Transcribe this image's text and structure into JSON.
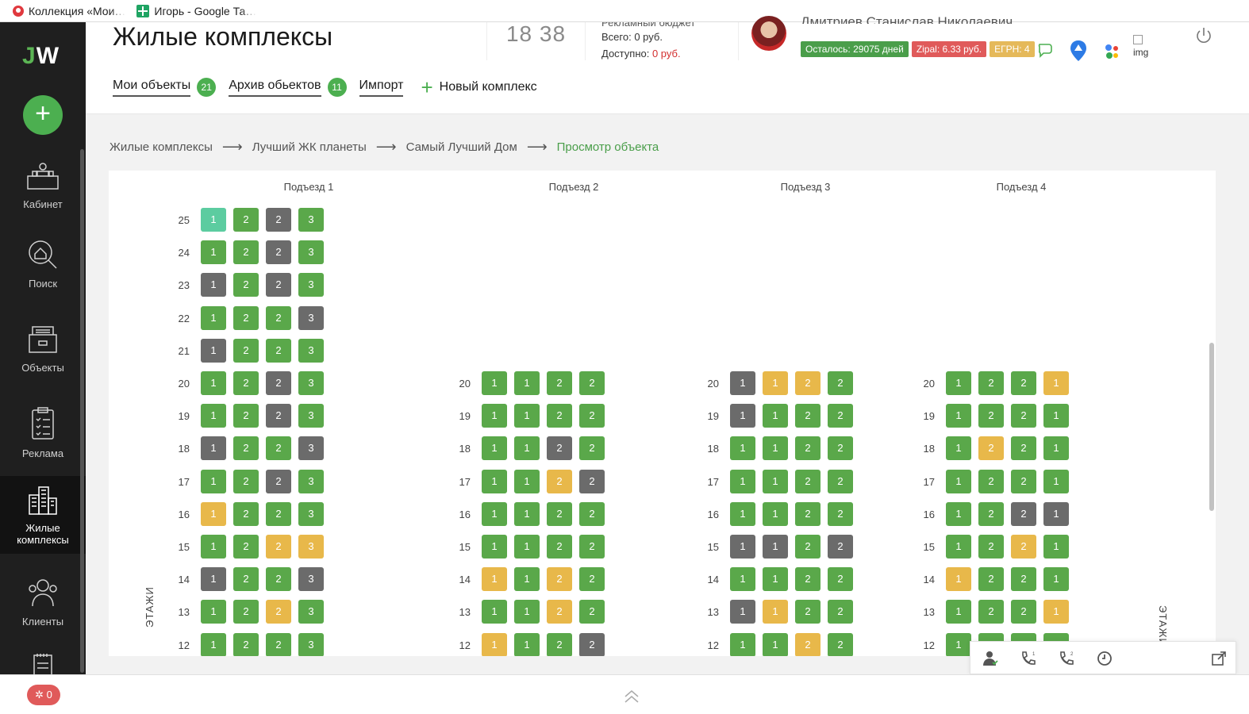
{
  "bookmarks": [
    {
      "label": "Коллекция «Мои…"
    },
    {
      "label": "Игорь - Google Та…"
    }
  ],
  "sidebar": {
    "logo_j": "J",
    "logo_w": "W",
    "add_symbol": "+",
    "items": [
      {
        "label": "Кабинет",
        "icon": "cabinet-icon"
      },
      {
        "label": "Поиск",
        "icon": "search-house-icon"
      },
      {
        "label": "Объекты",
        "icon": "objects-icon"
      },
      {
        "label": "Реклама",
        "icon": "clipboard-icon"
      },
      {
        "label": "Жилые комплексы",
        "icon": "buildings-icon",
        "active": true
      },
      {
        "label": "Клиенты",
        "icon": "clients-icon"
      }
    ]
  },
  "header": {
    "title": "Жилые комплексы",
    "clock": "18 38",
    "budget_title": "Рекламный бюджет",
    "budget_total_label": "Всего:",
    "budget_total_value": "0 руб.",
    "budget_available_label": "Доступно:",
    "budget_available_value": "0 руб.",
    "user_name": "Дмитриев Станислав Николаевич",
    "badges": [
      "Осталось: 29075 дней",
      "Zipal: 6.33 руб.",
      "ЕГРН: 4"
    ],
    "broken_img_alt": "img"
  },
  "tabs": [
    {
      "label": "Мои объекты",
      "count": "21"
    },
    {
      "label": "Архив обьектов",
      "count": "11"
    },
    {
      "label": "Импорт"
    },
    {
      "label": "Новый комплекс",
      "icon": "plus-icon"
    }
  ],
  "breadcrumb": [
    "Жилые комплексы",
    "Лучший ЖК планеты",
    "Самый Лучший Дом",
    "Просмотр объекта"
  ],
  "floors_label": "ЭТАЖИ",
  "status_colors": {
    "g": "#5aa84a",
    "d": "#6b6b6b",
    "y": "#e8b84a",
    "t": "#5ccca0"
  },
  "entrances": [
    {
      "title": "Подъезд 1",
      "floors": [
        {
          "num": "25",
          "apts": [
            [
              "1",
              "t"
            ],
            [
              "2",
              "g"
            ],
            [
              "2",
              "d"
            ],
            [
              "3",
              "g"
            ]
          ]
        },
        {
          "num": "24",
          "apts": [
            [
              "1",
              "g"
            ],
            [
              "2",
              "g"
            ],
            [
              "2",
              "d"
            ],
            [
              "3",
              "g"
            ]
          ]
        },
        {
          "num": "23",
          "apts": [
            [
              "1",
              "d"
            ],
            [
              "2",
              "g"
            ],
            [
              "2",
              "d"
            ],
            [
              "3",
              "g"
            ]
          ]
        },
        {
          "num": "22",
          "apts": [
            [
              "1",
              "g"
            ],
            [
              "2",
              "g"
            ],
            [
              "2",
              "g"
            ],
            [
              "3",
              "d"
            ]
          ]
        },
        {
          "num": "21",
          "apts": [
            [
              "1",
              "d"
            ],
            [
              "2",
              "g"
            ],
            [
              "2",
              "g"
            ],
            [
              "3",
              "g"
            ]
          ]
        },
        {
          "num": "20",
          "apts": [
            [
              "1",
              "g"
            ],
            [
              "2",
              "g"
            ],
            [
              "2",
              "d"
            ],
            [
              "3",
              "g"
            ]
          ]
        },
        {
          "num": "19",
          "apts": [
            [
              "1",
              "g"
            ],
            [
              "2",
              "g"
            ],
            [
              "2",
              "d"
            ],
            [
              "3",
              "g"
            ]
          ]
        },
        {
          "num": "18",
          "apts": [
            [
              "1",
              "d"
            ],
            [
              "2",
              "g"
            ],
            [
              "2",
              "g"
            ],
            [
              "3",
              "d"
            ]
          ]
        },
        {
          "num": "17",
          "apts": [
            [
              "1",
              "g"
            ],
            [
              "2",
              "g"
            ],
            [
              "2",
              "d"
            ],
            [
              "3",
              "g"
            ]
          ]
        },
        {
          "num": "16",
          "apts": [
            [
              "1",
              "y"
            ],
            [
              "2",
              "g"
            ],
            [
              "2",
              "g"
            ],
            [
              "3",
              "g"
            ]
          ]
        },
        {
          "num": "15",
          "apts": [
            [
              "1",
              "g"
            ],
            [
              "2",
              "g"
            ],
            [
              "2",
              "y"
            ],
            [
              "3",
              "y"
            ]
          ]
        },
        {
          "num": "14",
          "apts": [
            [
              "1",
              "d"
            ],
            [
              "2",
              "g"
            ],
            [
              "2",
              "g"
            ],
            [
              "3",
              "d"
            ]
          ]
        },
        {
          "num": "13",
          "apts": [
            [
              "1",
              "g"
            ],
            [
              "2",
              "g"
            ],
            [
              "2",
              "y"
            ],
            [
              "3",
              "g"
            ]
          ]
        },
        {
          "num": "12",
          "apts": [
            [
              "1",
              "g"
            ],
            [
              "2",
              "g"
            ],
            [
              "2",
              "g"
            ],
            [
              "3",
              "g"
            ]
          ]
        }
      ]
    },
    {
      "title": "Подъезд 2",
      "floors": [
        {
          "num": "20",
          "apts": [
            [
              "1",
              "g"
            ],
            [
              "1",
              "g"
            ],
            [
              "2",
              "g"
            ],
            [
              "2",
              "g"
            ]
          ]
        },
        {
          "num": "19",
          "apts": [
            [
              "1",
              "g"
            ],
            [
              "1",
              "g"
            ],
            [
              "2",
              "g"
            ],
            [
              "2",
              "g"
            ]
          ]
        },
        {
          "num": "18",
          "apts": [
            [
              "1",
              "g"
            ],
            [
              "1",
              "g"
            ],
            [
              "2",
              "d"
            ],
            [
              "2",
              "g"
            ]
          ]
        },
        {
          "num": "17",
          "apts": [
            [
              "1",
              "g"
            ],
            [
              "1",
              "g"
            ],
            [
              "2",
              "y"
            ],
            [
              "2",
              "d"
            ]
          ]
        },
        {
          "num": "16",
          "apts": [
            [
              "1",
              "g"
            ],
            [
              "1",
              "g"
            ],
            [
              "2",
              "g"
            ],
            [
              "2",
              "g"
            ]
          ]
        },
        {
          "num": "15",
          "apts": [
            [
              "1",
              "g"
            ],
            [
              "1",
              "g"
            ],
            [
              "2",
              "g"
            ],
            [
              "2",
              "g"
            ]
          ]
        },
        {
          "num": "14",
          "apts": [
            [
              "1",
              "y"
            ],
            [
              "1",
              "g"
            ],
            [
              "2",
              "y"
            ],
            [
              "2",
              "g"
            ]
          ]
        },
        {
          "num": "13",
          "apts": [
            [
              "1",
              "g"
            ],
            [
              "1",
              "g"
            ],
            [
              "2",
              "y"
            ],
            [
              "2",
              "g"
            ]
          ]
        },
        {
          "num": "12",
          "apts": [
            [
              "1",
              "y"
            ],
            [
              "1",
              "g"
            ],
            [
              "2",
              "g"
            ],
            [
              "2",
              "d"
            ]
          ]
        }
      ]
    },
    {
      "title": "Подъезд 3",
      "floors": [
        {
          "num": "20",
          "apts": [
            [
              "1",
              "d"
            ],
            [
              "1",
              "y"
            ],
            [
              "2",
              "y"
            ],
            [
              "2",
              "g"
            ]
          ]
        },
        {
          "num": "19",
          "apts": [
            [
              "1",
              "d"
            ],
            [
              "1",
              "g"
            ],
            [
              "2",
              "g"
            ],
            [
              "2",
              "g"
            ]
          ]
        },
        {
          "num": "18",
          "apts": [
            [
              "1",
              "g"
            ],
            [
              "1",
              "g"
            ],
            [
              "2",
              "g"
            ],
            [
              "2",
              "g"
            ]
          ]
        },
        {
          "num": "17",
          "apts": [
            [
              "1",
              "g"
            ],
            [
              "1",
              "g"
            ],
            [
              "2",
              "g"
            ],
            [
              "2",
              "g"
            ]
          ]
        },
        {
          "num": "16",
          "apts": [
            [
              "1",
              "g"
            ],
            [
              "1",
              "g"
            ],
            [
              "2",
              "g"
            ],
            [
              "2",
              "g"
            ]
          ]
        },
        {
          "num": "15",
          "apts": [
            [
              "1",
              "d"
            ],
            [
              "1",
              "d"
            ],
            [
              "2",
              "g"
            ],
            [
              "2",
              "d"
            ]
          ]
        },
        {
          "num": "14",
          "apts": [
            [
              "1",
              "g"
            ],
            [
              "1",
              "g"
            ],
            [
              "2",
              "g"
            ],
            [
              "2",
              "g"
            ]
          ]
        },
        {
          "num": "13",
          "apts": [
            [
              "1",
              "d"
            ],
            [
              "1",
              "y"
            ],
            [
              "2",
              "g"
            ],
            [
              "2",
              "g"
            ]
          ]
        },
        {
          "num": "12",
          "apts": [
            [
              "1",
              "g"
            ],
            [
              "1",
              "g"
            ],
            [
              "2",
              "y"
            ],
            [
              "2",
              "g"
            ]
          ]
        }
      ]
    },
    {
      "title": "Подъезд 4",
      "floors": [
        {
          "num": "20",
          "apts": [
            [
              "1",
              "g"
            ],
            [
              "2",
              "g"
            ],
            [
              "2",
              "g"
            ],
            [
              "1",
              "y"
            ]
          ]
        },
        {
          "num": "19",
          "apts": [
            [
              "1",
              "g"
            ],
            [
              "2",
              "g"
            ],
            [
              "2",
              "g"
            ],
            [
              "1",
              "g"
            ]
          ]
        },
        {
          "num": "18",
          "apts": [
            [
              "1",
              "g"
            ],
            [
              "2",
              "y"
            ],
            [
              "2",
              "g"
            ],
            [
              "1",
              "g"
            ]
          ]
        },
        {
          "num": "17",
          "apts": [
            [
              "1",
              "g"
            ],
            [
              "2",
              "g"
            ],
            [
              "2",
              "g"
            ],
            [
              "1",
              "g"
            ]
          ]
        },
        {
          "num": "16",
          "apts": [
            [
              "1",
              "g"
            ],
            [
              "2",
              "g"
            ],
            [
              "2",
              "d"
            ],
            [
              "1",
              "d"
            ]
          ]
        },
        {
          "num": "15",
          "apts": [
            [
              "1",
              "g"
            ],
            [
              "2",
              "g"
            ],
            [
              "2",
              "y"
            ],
            [
              "1",
              "g"
            ]
          ]
        },
        {
          "num": "14",
          "apts": [
            [
              "1",
              "y"
            ],
            [
              "2",
              "g"
            ],
            [
              "2",
              "g"
            ],
            [
              "1",
              "g"
            ]
          ]
        },
        {
          "num": "13",
          "apts": [
            [
              "1",
              "g"
            ],
            [
              "2",
              "g"
            ],
            [
              "2",
              "g"
            ],
            [
              "1",
              "y"
            ]
          ]
        },
        {
          "num": "12",
          "apts": [
            [
              "1",
              "g"
            ],
            [
              "2",
              "g"
            ],
            [
              "2",
              "g"
            ],
            [
              "1",
              "g"
            ]
          ]
        }
      ]
    }
  ],
  "footer": {
    "notifications": "0"
  },
  "call_widget": {
    "icons": [
      "agent-icon",
      "phone-1-icon",
      "phone-2-icon",
      "clock-icon",
      "popout-icon"
    ],
    "line1": "1",
    "line2": "2"
  }
}
